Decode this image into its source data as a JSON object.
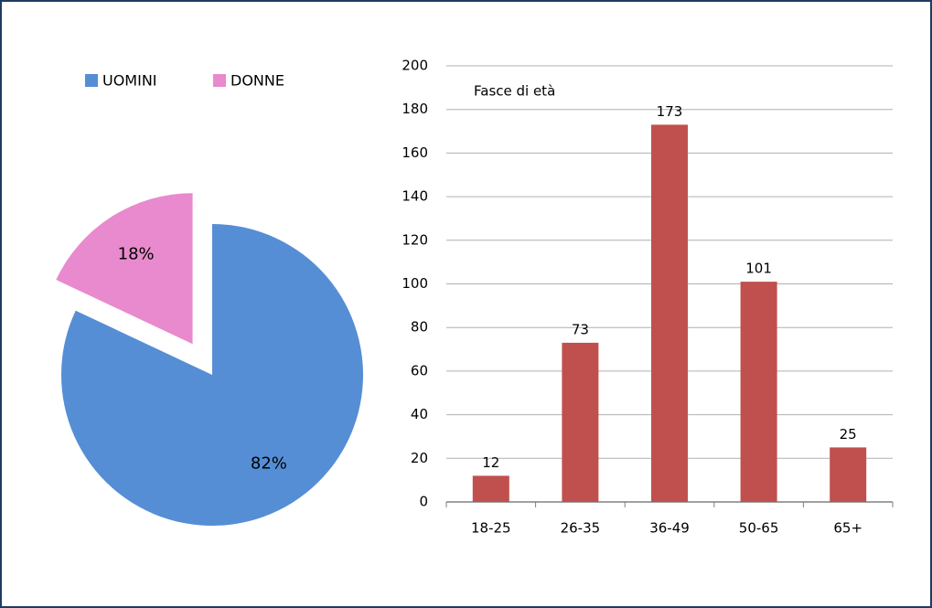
{
  "chart_data": [
    {
      "type": "pie",
      "categories": [
        "UOMINI",
        "DONNE"
      ],
      "values": [
        82,
        18
      ],
      "value_labels": [
        "82%",
        "18%"
      ],
      "colors": [
        "#558ed5",
        "#e88acd"
      ],
      "explode": [
        false,
        true
      ],
      "legend": "top"
    },
    {
      "type": "bar",
      "title": "Fasce di età",
      "categories": [
        "18-25",
        "26-35",
        "36-49",
        "50-65",
        "65+"
      ],
      "values": [
        12,
        73,
        173,
        101,
        25
      ],
      "color": "#c0504d",
      "ylim": [
        0,
        200
      ],
      "yticks": [
        0,
        20,
        40,
        60,
        80,
        100,
        120,
        140,
        160,
        180,
        200
      ],
      "grid": true
    }
  ]
}
